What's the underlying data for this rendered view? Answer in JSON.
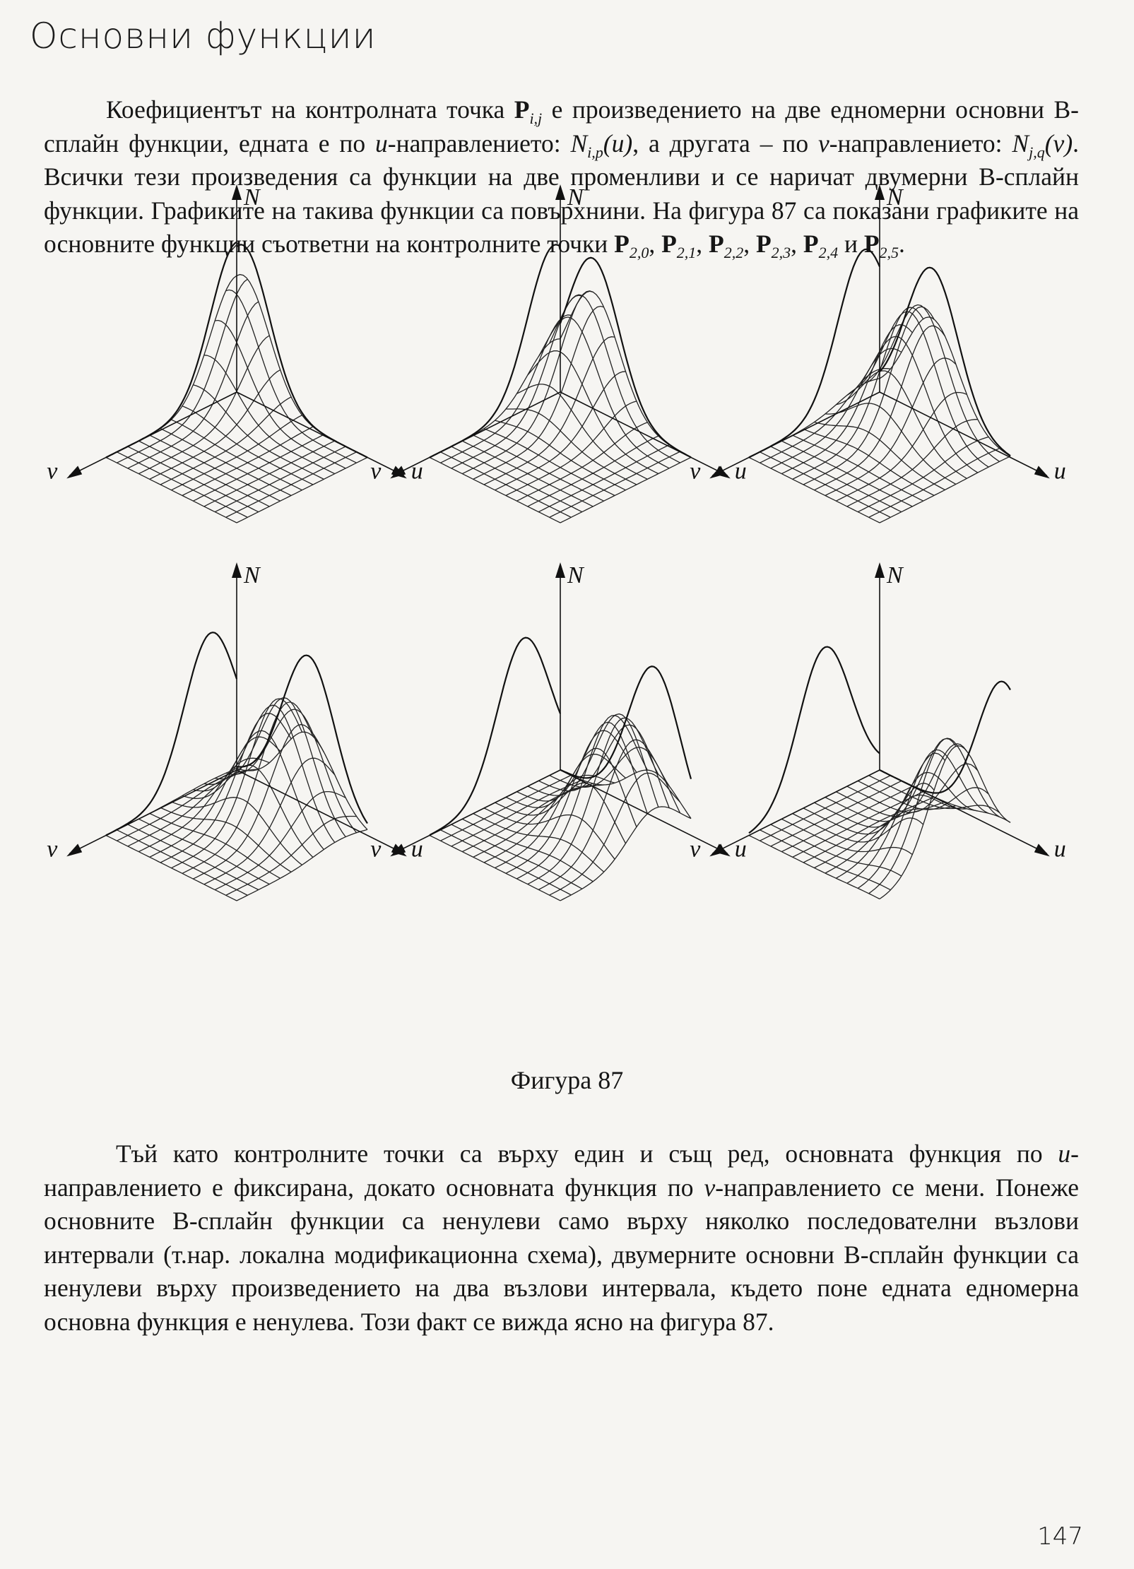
{
  "header": {
    "title": "Основни функции"
  },
  "paragraph1": {
    "t1": "Коефициентът на контролната точка ",
    "p_bold": "P",
    "p_sub": "i,j",
    "t2": " е произведението на две едномерни основни B-сплайн функции, едната е по ",
    "u_var": "u",
    "t3": "-направлението: ",
    "N1": "N",
    "N1_sub": "i,p",
    "N1_arg": "(u)",
    "t4": ", а другата – по ",
    "v_var": "v",
    "t5": "-направлението: ",
    "N2": "N",
    "N2_sub": "j,q",
    "N2_arg": "(v)",
    "t6": ". Всички тези произведения са функции на две променливи и се наричат двумерни B-сплайн функции. Графиките на такива функции са повърхнини. На фигура 87 са показани графиките на основните функции съответни на контролните точки ",
    "points": [
      {
        "label": "P",
        "sub": "2,0"
      },
      {
        "label": "P",
        "sub": "2,1"
      },
      {
        "label": "P",
        "sub": "2,2"
      },
      {
        "label": "P",
        "sub": "2,3"
      },
      {
        "label": "P",
        "sub": "2,4"
      },
      {
        "label": "P",
        "sub": "2,5"
      }
    ],
    "sep": ", ",
    "conj": " и ",
    "end": "."
  },
  "figure": {
    "caption": "Фигура 87",
    "axis_labels": {
      "n": "N",
      "u": "u",
      "v": "v"
    },
    "panels": [
      {
        "peak_u": 0.05,
        "peak_v": 0.0
      },
      {
        "peak_u": 0.25,
        "peak_v": 0.05
      },
      {
        "peak_u": 0.4,
        "peak_v": 0.12
      },
      {
        "peak_u": 0.55,
        "peak_v": 0.2
      },
      {
        "peak_u": 0.72,
        "peak_v": 0.28
      },
      {
        "peak_u": 0.95,
        "peak_v": 0.42
      }
    ]
  },
  "paragraph2": {
    "t1": "Тъй като контролните точки са върху един и същ ред, основната функция по ",
    "u_var": "u",
    "t2": "-направлението е фиксирана, докато основната функция по ",
    "v_var": "v",
    "t3": "-направлението се мени. Понеже основните B-сплайн функции са ненулеви само върху няколко последователни възлови интервали (т.нар. локална модификационна схема), двумерните основни B-сплайн функции са ненулеви върху произведението на два възлови интервала, където поне едната едномерна основна функция е ненулева. Този факт се вижда ясно на фигура 87."
  },
  "page_number": "147"
}
